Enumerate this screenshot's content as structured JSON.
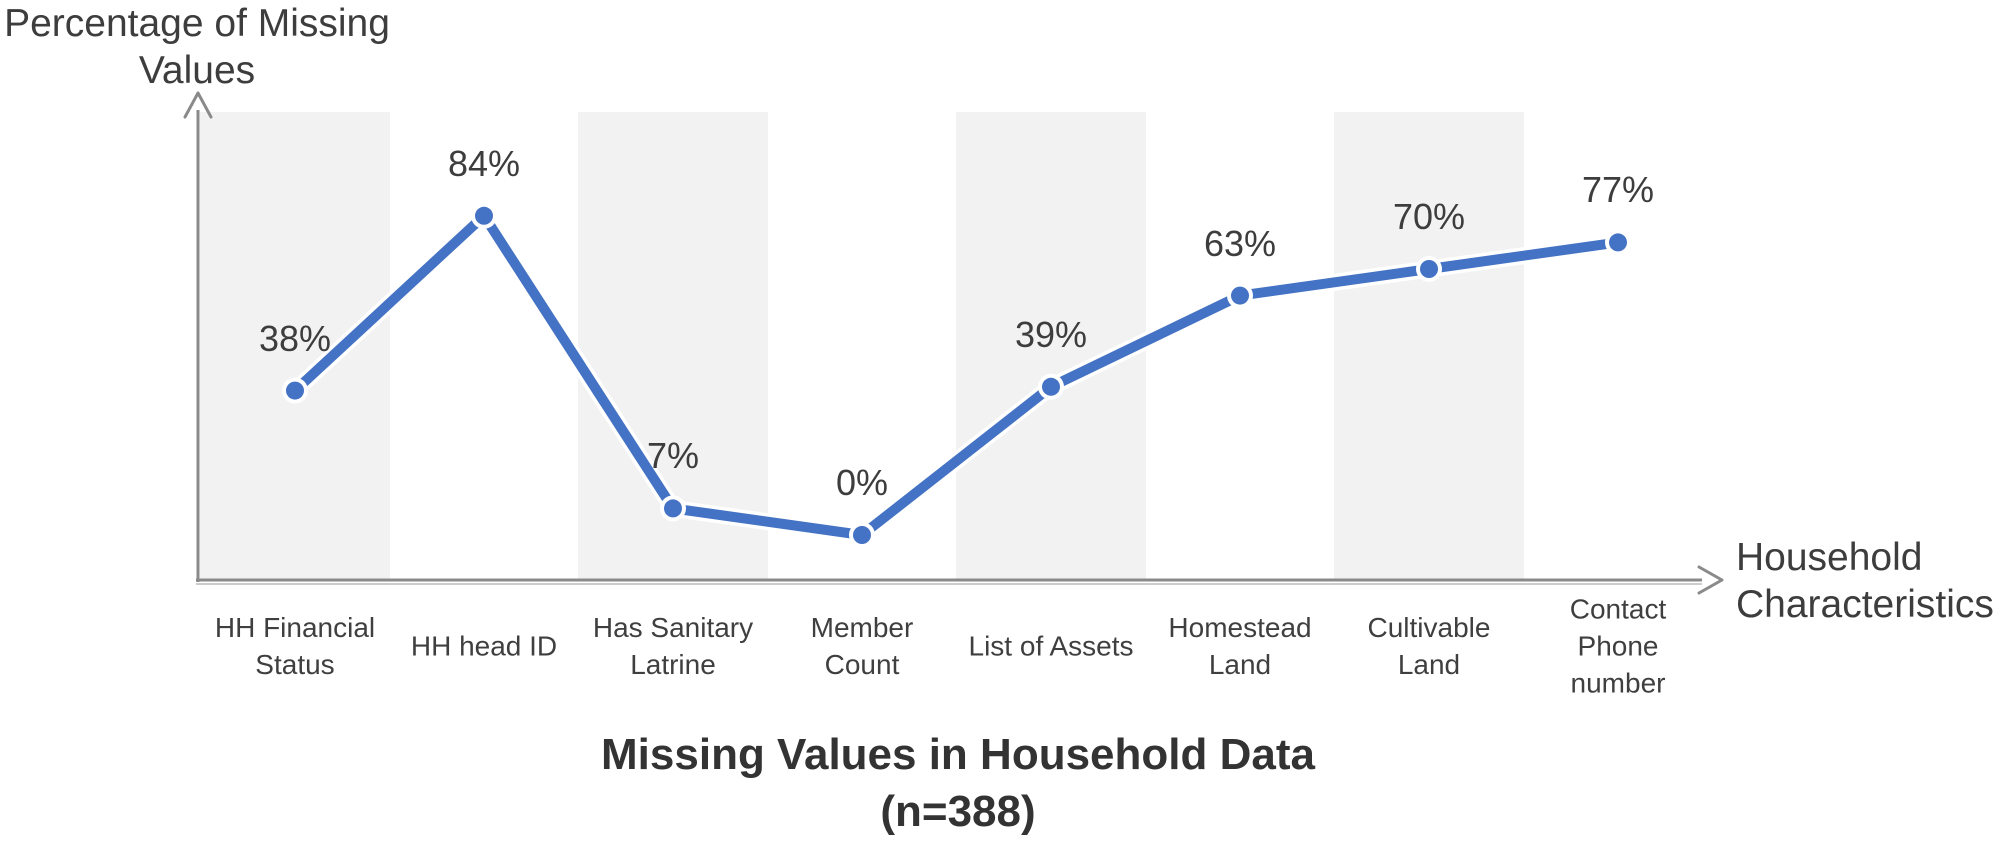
{
  "chart_data": {
    "type": "line",
    "title": "Missing Values in Household Data",
    "subtitle": "(n=388)",
    "xlabel": "Household Characteristics",
    "ylabel": "Percentage of Missing Values",
    "categories": [
      "HH Financial Status",
      "HH head ID",
      "Has Sanitary Latrine",
      "Member Count",
      "List of Assets",
      "Homestead Land",
      "Cultivable Land",
      "Contact Phone number"
    ],
    "values": [
      38,
      84,
      7,
      0,
      39,
      63,
      70,
      77
    ],
    "unit": "%",
    "data_labels": [
      "38%",
      "84%",
      "7%",
      "0%",
      "39%",
      "63%",
      "70%",
      "77%"
    ],
    "ylim": [
      0,
      100
    ],
    "grid": false,
    "legend": "none",
    "background_bands": "alternating light-gray vertical stripes behind categories 1, 3, 5, 7",
    "colors": {
      "line": "#4472c4",
      "marker": "#4472c4",
      "band": "#f2f2f2",
      "axis": "#8a8a8a",
      "label_text": "#3d3d3d",
      "title_text": "#333333"
    }
  }
}
